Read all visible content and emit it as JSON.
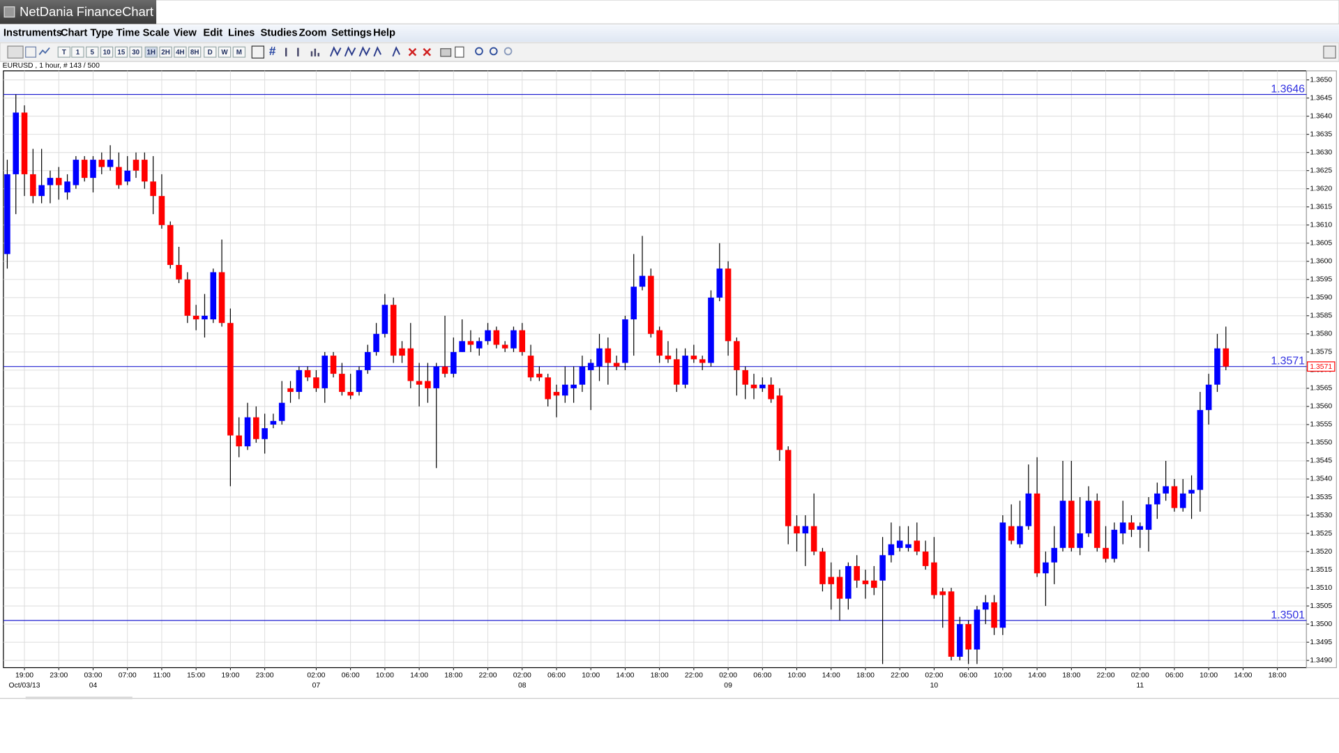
{
  "window": {
    "title": "NetDania FinanceChart"
  },
  "menu": [
    "Instruments",
    "Chart Type",
    "Time Scale",
    "View",
    "Edit",
    "Lines",
    "Studies",
    "Zoom",
    "Settings",
    "Help"
  ],
  "toolbar": [
    "T",
    "1",
    "5",
    "10",
    "15",
    "30",
    "1H",
    "2H",
    "4H",
    "8H",
    "D",
    "W",
    "M"
  ],
  "instrument_label": "EURUSD , 1 hour, # 143 / 500",
  "chart_data": {
    "type": "candlestick",
    "up_color": "#0000ff",
    "down_color": "#ff0000",
    "wick_color": "#000000",
    "line_color": "#2020d0",
    "grid": true,
    "open": [
      1.3602,
      1.3624,
      1.3641,
      1.3624,
      1.3618,
      1.3621,
      1.3623,
      1.3619,
      1.3621,
      1.3628,
      1.3623,
      1.3628,
      1.3626,
      1.3626,
      1.3622,
      1.3628,
      1.3628,
      1.3622,
      1.3618,
      1.361,
      1.3599,
      1.3595,
      1.3585,
      1.3584,
      1.3584,
      1.3597,
      1.3583,
      1.3552,
      1.3549,
      1.3557,
      1.3551,
      1.3555,
      1.3556,
      1.3565,
      1.3564,
      1.357,
      1.3568,
      1.3565,
      1.3574,
      1.3569,
      1.3564,
      1.3564,
      1.357,
      1.3575,
      1.358,
      1.3588,
      1.3576,
      1.3576,
      1.3567,
      1.3567,
      1.3565,
      1.3571,
      1.3569,
      1.3575,
      1.3578,
      1.3576,
      1.3578,
      1.3581,
      1.3577,
      1.3576,
      1.3581,
      1.3574,
      1.3569,
      1.3568,
      1.3564,
      1.3563,
      1.3565,
      1.3566,
      1.357,
      1.3571,
      1.3576,
      1.3572,
      1.3572,
      1.3584,
      1.3593,
      1.3596,
      1.3581,
      1.3574,
      1.3573,
      1.3566,
      1.3574,
      1.3573,
      1.3572,
      1.359,
      1.3598,
      1.3578,
      1.357,
      1.3566,
      1.3565,
      1.3566,
      1.3563,
      1.3548,
      1.3527,
      1.3525,
      1.3527,
      1.352,
      1.3513,
      1.3513,
      1.3507,
      1.3516,
      1.3512,
      1.3512,
      1.3512,
      1.3519,
      1.3521,
      1.3521,
      1.3523,
      1.352,
      1.3517,
      1.3509,
      1.3509,
      1.3491,
      1.35,
      1.3493,
      1.3504,
      1.3506,
      1.3499,
      1.3527,
      1.3522,
      1.3527,
      1.3536,
      1.3514,
      1.3517,
      1.3521,
      1.3534,
      1.3521,
      1.3525,
      1.3534,
      1.3521,
      1.3518,
      1.3525,
      1.3528,
      1.3526,
      1.3526,
      1.3533,
      1.3536,
      1.3538,
      1.3532,
      1.3536,
      1.3537,
      1.3559,
      1.3566,
      1.3576
    ],
    "high": [
      1.3628,
      1.3646,
      1.3643,
      1.3631,
      1.3631,
      1.3625,
      1.3626,
      1.3624,
      1.3629,
      1.3629,
      1.3629,
      1.363,
      1.3632,
      1.363,
      1.3629,
      1.363,
      1.363,
      1.3629,
      1.3624,
      1.3611,
      1.3604,
      1.3597,
      1.3588,
      1.3591,
      1.3598,
      1.3606,
      1.3587,
      1.3557,
      1.3561,
      1.356,
      1.3558,
      1.3558,
      1.3567,
      1.3567,
      1.3571,
      1.3571,
      1.357,
      1.3575,
      1.3575,
      1.3572,
      1.3569,
      1.3571,
      1.3577,
      1.3583,
      1.3591,
      1.359,
      1.3578,
      1.3583,
      1.3572,
      1.3572,
      1.3572,
      1.3585,
      1.3579,
      1.3584,
      1.3581,
      1.3579,
      1.3583,
      1.3582,
      1.3578,
      1.3582,
      1.3583,
      1.3577,
      1.3571,
      1.3569,
      1.3566,
      1.3571,
      1.3571,
      1.3574,
      1.3573,
      1.358,
      1.3579,
      1.3574,
      1.3585,
      1.3602,
      1.3607,
      1.3598,
      1.3582,
      1.3578,
      1.3576,
      1.3576,
      1.3577,
      1.3574,
      1.3592,
      1.3605,
      1.36,
      1.3579,
      1.3571,
      1.3569,
      1.3568,
      1.3568,
      1.3565,
      1.3549,
      1.353,
      1.353,
      1.3536,
      1.3521,
      1.3517,
      1.3515,
      1.3517,
      1.3519,
      1.3515,
      1.3516,
      1.3524,
      1.3528,
      1.3527,
      1.3527,
      1.3528,
      1.3523,
      1.3524,
      1.351,
      1.351,
      1.3502,
      1.3501,
      1.3505,
      1.3508,
      1.3508,
      1.353,
      1.3533,
      1.3534,
      1.3544,
      1.3546,
      1.352,
      1.3527,
      1.3545,
      1.3545,
      1.3535,
      1.3538,
      1.3536,
      1.3527,
      1.3528,
      1.3534,
      1.353,
      1.3528,
      1.3535,
      1.3539,
      1.3545,
      1.354,
      1.354,
      1.3541,
      1.3564,
      1.3569,
      1.358,
      1.3582
    ],
    "low": [
      1.3598,
      1.3613,
      1.3618,
      1.3616,
      1.3616,
      1.3616,
      1.3617,
      1.3617,
      1.362,
      1.3622,
      1.3619,
      1.3624,
      1.3625,
      1.362,
      1.3621,
      1.3623,
      1.362,
      1.3613,
      1.3609,
      1.3598,
      1.3594,
      1.3583,
      1.3581,
      1.3579,
      1.3583,
      1.3582,
      1.3538,
      1.3546,
      1.3548,
      1.355,
      1.3547,
      1.3554,
      1.3555,
      1.3561,
      1.3562,
      1.3567,
      1.3564,
      1.3561,
      1.3568,
      1.3563,
      1.3562,
      1.3563,
      1.3569,
      1.3574,
      1.3579,
      1.3572,
      1.3572,
      1.3565,
      1.356,
      1.3561,
      1.3543,
      1.3568,
      1.3568,
      1.3575,
      1.3575,
      1.3574,
      1.3577,
      1.3576,
      1.3575,
      1.3575,
      1.3574,
      1.3567,
      1.3567,
      1.356,
      1.3557,
      1.3561,
      1.3561,
      1.3564,
      1.3559,
      1.3567,
      1.3566,
      1.357,
      1.357,
      1.3574,
      1.3592,
      1.3579,
      1.3572,
      1.3572,
      1.3564,
      1.3565,
      1.3572,
      1.357,
      1.3571,
      1.3589,
      1.3574,
      1.3563,
      1.3562,
      1.3562,
      1.3564,
      1.3561,
      1.3545,
      1.3522,
      1.352,
      1.3516,
      1.3519,
      1.3509,
      1.3504,
      1.3501,
      1.3504,
      1.351,
      1.3507,
      1.3508,
      1.3489,
      1.3517,
      1.352,
      1.352,
      1.3519,
      1.3515,
      1.3507,
      1.3499,
      1.349,
      1.349,
      1.3489,
      1.3489,
      1.35,
      1.3497,
      1.3497,
      1.3522,
      1.3521,
      1.3526,
      1.3513,
      1.3505,
      1.3511,
      1.352,
      1.352,
      1.3519,
      1.3524,
      1.352,
      1.3517,
      1.3517,
      1.3522,
      1.3524,
      1.3521,
      1.352,
      1.3529,
      1.3534,
      1.3531,
      1.3531,
      1.3529,
      1.3531,
      1.3555,
      1.3564,
      1.357
    ],
    "close": [
      1.3624,
      1.3641,
      1.3624,
      1.3618,
      1.3621,
      1.3623,
      1.3621,
      1.3622,
      1.3628,
      1.3623,
      1.3628,
      1.3626,
      1.3628,
      1.3621,
      1.3625,
      1.3625,
      1.3622,
      1.3618,
      1.361,
      1.3599,
      1.3595,
      1.3585,
      1.3584,
      1.3585,
      1.3597,
      1.3583,
      1.3552,
      1.3549,
      1.3557,
      1.3551,
      1.3554,
      1.3556,
      1.3561,
      1.3564,
      1.357,
      1.3568,
      1.3565,
      1.3574,
      1.3569,
      1.3564,
      1.3563,
      1.357,
      1.3575,
      1.358,
      1.3588,
      1.3574,
      1.3574,
      1.3567,
      1.3566,
      1.3565,
      1.3571,
      1.3569,
      1.3575,
      1.3578,
      1.3577,
      1.3578,
      1.3581,
      1.3577,
      1.3576,
      1.3581,
      1.3575,
      1.3568,
      1.3568,
      1.3562,
      1.3563,
      1.3566,
      1.3566,
      1.3571,
      1.3572,
      1.3576,
      1.3572,
      1.3571,
      1.3584,
      1.3593,
      1.3596,
      1.358,
      1.3574,
      1.3573,
      1.3566,
      1.3574,
      1.3573,
      1.3572,
      1.359,
      1.3598,
      1.3578,
      1.357,
      1.3566,
      1.3565,
      1.3566,
      1.3562,
      1.3548,
      1.3527,
      1.3525,
      1.3527,
      1.352,
      1.3511,
      1.3511,
      1.3507,
      1.3516,
      1.3512,
      1.3511,
      1.351,
      1.3519,
      1.3522,
      1.3523,
      1.3522,
      1.352,
      1.3516,
      1.3508,
      1.3508,
      1.3491,
      1.35,
      1.3493,
      1.3504,
      1.3506,
      1.3499,
      1.3528,
      1.3523,
      1.3527,
      1.3536,
      1.3514,
      1.3517,
      1.3521,
      1.3534,
      1.3521,
      1.3525,
      1.3534,
      1.3521,
      1.3518,
      1.3526,
      1.3528,
      1.3526,
      1.3527,
      1.3533,
      1.3536,
      1.3538,
      1.3532,
      1.3536,
      1.3537,
      1.3559,
      1.3566,
      1.3576,
      1.3571
    ],
    "hlines": [
      1.3646,
      1.3571,
      1.3501
    ],
    "last_price": 1.3571,
    "xlim": [
      -0.45,
      151.4
    ],
    "ylim": [
      1.3488,
      1.36525
    ],
    "xticks": [
      {
        "value": 2,
        "label": "19:00"
      },
      {
        "value": 6,
        "label": "23:00"
      },
      {
        "value": 10,
        "label": "03:00"
      },
      {
        "value": 14,
        "label": "07:00"
      },
      {
        "value": 18,
        "label": "11:00"
      },
      {
        "value": 22,
        "label": "15:00"
      },
      {
        "value": 26,
        "label": "19:00"
      },
      {
        "value": 30,
        "label": "23:00"
      },
      {
        "value": 36,
        "label": "02:00"
      },
      {
        "value": 40,
        "label": "06:00"
      },
      {
        "value": 44,
        "label": "10:00"
      },
      {
        "value": 48,
        "label": "14:00"
      },
      {
        "value": 52,
        "label": "18:00"
      },
      {
        "value": 56,
        "label": "22:00"
      },
      {
        "value": 60,
        "label": "02:00"
      },
      {
        "value": 64,
        "label": "06:00"
      },
      {
        "value": 68,
        "label": "10:00"
      },
      {
        "value": 72,
        "label": "14:00"
      },
      {
        "value": 76,
        "label": "18:00"
      },
      {
        "value": 80,
        "label": "22:00"
      },
      {
        "value": 84,
        "label": "02:00"
      },
      {
        "value": 88,
        "label": "06:00"
      },
      {
        "value": 92,
        "label": "10:00"
      },
      {
        "value": 96,
        "label": "14:00"
      },
      {
        "value": 100,
        "label": "18:00"
      },
      {
        "value": 104,
        "label": "22:00"
      },
      {
        "value": 108,
        "label": "02:00"
      },
      {
        "value": 112,
        "label": "06:00"
      },
      {
        "value": 116,
        "label": "10:00"
      },
      {
        "value": 120,
        "label": "14:00"
      },
      {
        "value": 124,
        "label": "18:00"
      },
      {
        "value": 128,
        "label": "22:00"
      },
      {
        "value": 132,
        "label": "02:00"
      },
      {
        "value": 136,
        "label": "06:00"
      },
      {
        "value": 140,
        "label": "10:00"
      },
      {
        "value": 144,
        "label": "14:00"
      },
      {
        "value": 148,
        "label": "18:00"
      }
    ],
    "xdates": [
      {
        "value": 2,
        "label": "Oct/03/13"
      },
      {
        "value": 10,
        "label": "04"
      },
      {
        "value": 36,
        "label": "07"
      },
      {
        "value": 60,
        "label": "08"
      },
      {
        "value": 84,
        "label": "09"
      },
      {
        "value": 108,
        "label": "10"
      },
      {
        "value": 132,
        "label": "11"
      }
    ],
    "yticks": [
      {
        "value": 1.349,
        "label": "1.3490"
      },
      1.3495,
      {
        "value": 1.35,
        "label": "1.3500"
      },
      1.3505,
      {
        "value": 1.351,
        "label": "1.3510"
      },
      1.3515,
      {
        "value": 1.352,
        "label": "1.3520"
      },
      1.3525,
      {
        "value": 1.353,
        "label": "1.3530"
      },
      1.3535,
      {
        "value": 1.354,
        "label": "1.3540"
      },
      1.3545,
      {
        "value": 1.355,
        "label": "1.3550"
      },
      1.3555,
      {
        "value": 1.356,
        "label": "1.3560"
      },
      1.3565,
      {
        "value": 1.357,
        "label": "1.3570"
      },
      1.3575,
      {
        "value": 1.358,
        "label": "1.3580"
      },
      1.3585,
      {
        "value": 1.359,
        "label": "1.3590"
      },
      1.3595,
      {
        "value": 1.36,
        "label": "1.3600"
      },
      1.3605,
      {
        "value": 1.361,
        "label": "1.3610"
      },
      1.3615,
      {
        "value": 1.362,
        "label": "1.3620"
      },
      1.3625,
      {
        "value": 1.363,
        "label": "1.3630"
      },
      1.3635,
      {
        "value": 1.364,
        "label": "1.3640"
      },
      1.3645,
      {
        "value": 1.365,
        "label": "1.3650"
      }
    ]
  }
}
